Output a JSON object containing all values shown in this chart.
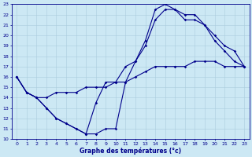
{
  "xlabel": "Graphe des températures (°c)",
  "xlim": [
    -0.5,
    23.5
  ],
  "ylim": [
    10,
    23
  ],
  "yticks": [
    10,
    11,
    12,
    13,
    14,
    15,
    16,
    17,
    18,
    19,
    20,
    21,
    22,
    23
  ],
  "xticks": [
    0,
    1,
    2,
    3,
    4,
    5,
    6,
    7,
    8,
    9,
    10,
    11,
    12,
    13,
    14,
    15,
    16,
    17,
    18,
    19,
    20,
    21,
    22,
    23
  ],
  "bg_color": "#cce8f4",
  "line_color": "#00008b",
  "grid_color": "#aaccdd",
  "line1_x": [
    0,
    1,
    2,
    3,
    4,
    5,
    6,
    7,
    8,
    9,
    10,
    11,
    12,
    13,
    14,
    15,
    16,
    17,
    18,
    19,
    20,
    21,
    22,
    23
  ],
  "line1_y": [
    16,
    14.5,
    14,
    13,
    12,
    11.5,
    11,
    10.5,
    10.5,
    11,
    11,
    15.5,
    17.5,
    19,
    21.5,
    22.5,
    22.5,
    21.5,
    21.5,
    21,
    19.5,
    18.5,
    17.5,
    17
  ],
  "line2_x": [
    0,
    1,
    2,
    3,
    4,
    5,
    6,
    7,
    8,
    9,
    10,
    11,
    12,
    13,
    14,
    15,
    16,
    17,
    18,
    19,
    20,
    21,
    22,
    23
  ],
  "line2_y": [
    16,
    14.5,
    14,
    13,
    12,
    11.5,
    11,
    10.5,
    13.5,
    15.5,
    15.5,
    17,
    17.5,
    19.5,
    22.5,
    23,
    22.5,
    22,
    22,
    21,
    20,
    19,
    18.5,
    17
  ],
  "line3_x": [
    0,
    1,
    2,
    3,
    4,
    5,
    6,
    7,
    8,
    9,
    10,
    11,
    12,
    13,
    14,
    15,
    16,
    17,
    18,
    19,
    20,
    21,
    22,
    23
  ],
  "line3_y": [
    16,
    14.5,
    14,
    14,
    14.5,
    14.5,
    14.5,
    15,
    15,
    15,
    15.5,
    15.5,
    16,
    16.5,
    17,
    17,
    17,
    17,
    17.5,
    17.5,
    17.5,
    17,
    17,
    17
  ],
  "tick_fontsize": 4.5,
  "xlabel_fontsize": 5.5,
  "linewidth": 0.8,
  "markersize": 1.8
}
